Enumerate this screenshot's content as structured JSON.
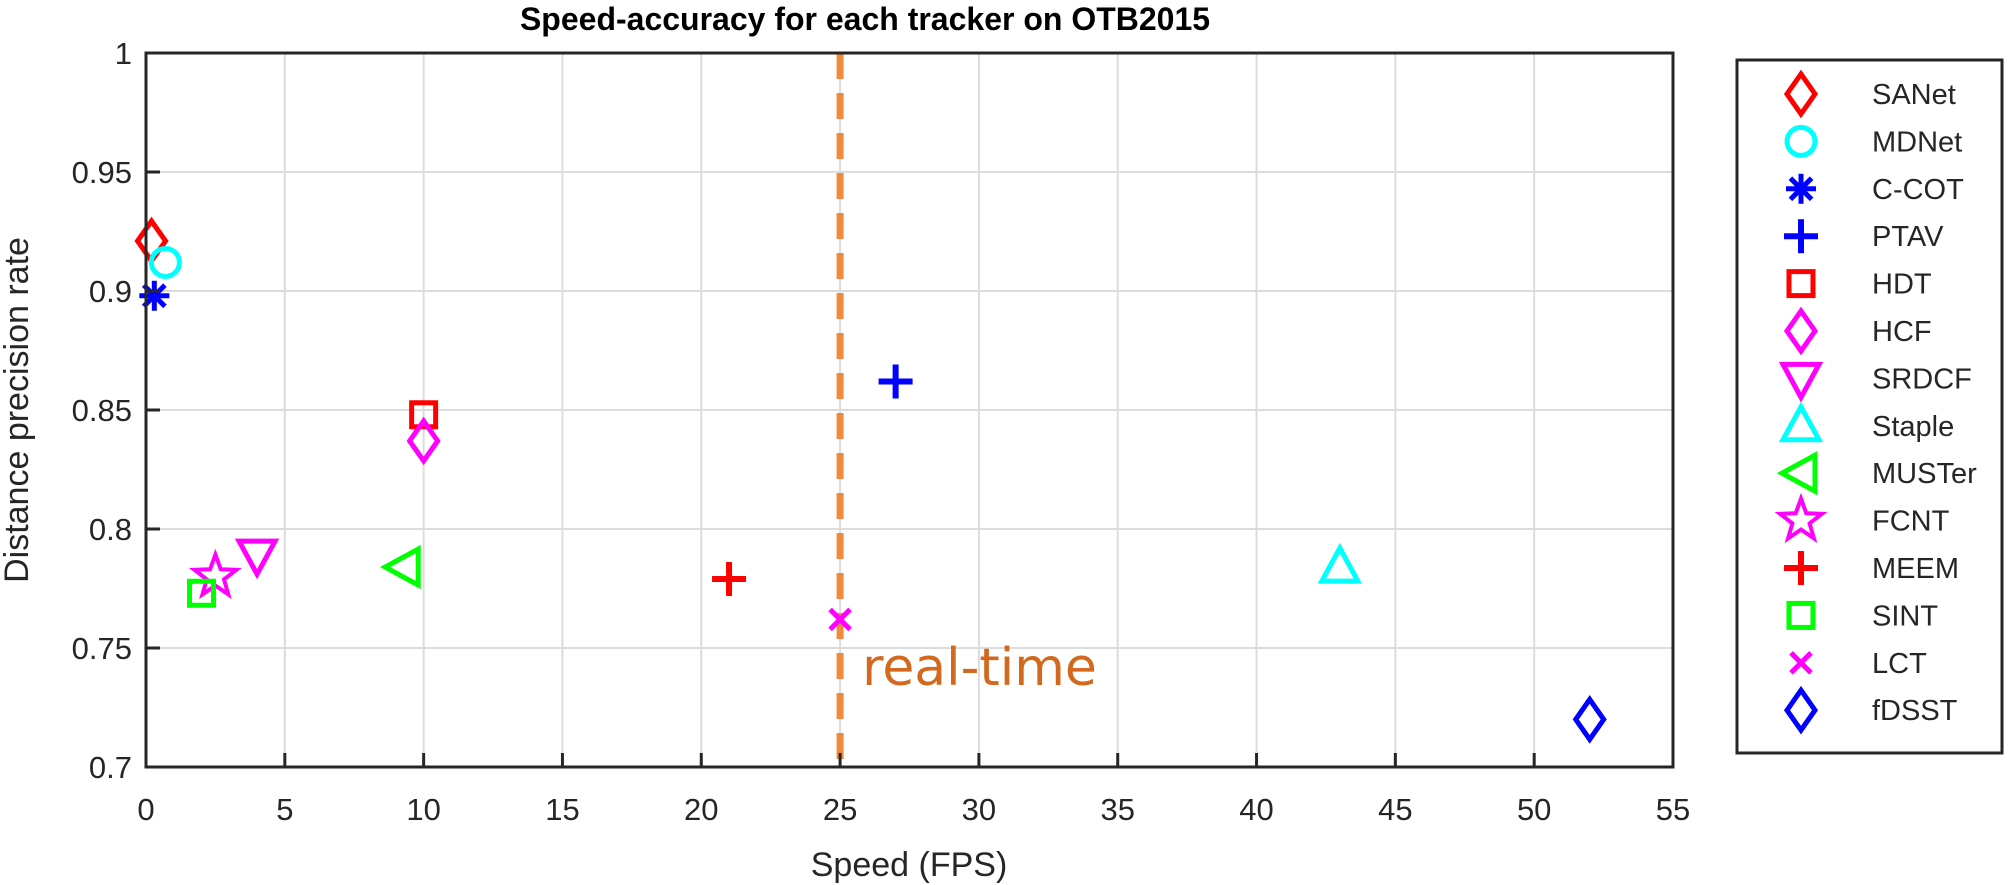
{
  "chart_data": {
    "type": "scatter",
    "title": "Speed-accuracy for each tracker on OTB2015",
    "xlabel": "Speed (FPS)",
    "ylabel": "Distance precision rate",
    "xlim": [
      0,
      55
    ],
    "ylim": [
      0.7,
      1
    ],
    "xticks": [
      0,
      5,
      10,
      15,
      20,
      25,
      30,
      35,
      40,
      45,
      50,
      55
    ],
    "yticks": [
      0.7,
      0.75,
      0.8,
      0.85,
      0.9,
      0.95,
      1
    ],
    "xtick_labels": [
      "0",
      "5",
      "10",
      "15",
      "20",
      "25",
      "30",
      "35",
      "40",
      "45",
      "50",
      "55"
    ],
    "ytick_labels": [
      "0.7",
      "0.75",
      "0.8",
      "0.85",
      "0.9",
      "0.95",
      "1"
    ],
    "grid": true,
    "legend_position": "outside-right",
    "series": [
      {
        "name": "SANet",
        "x": 0.2,
        "y": 0.921,
        "marker": "diamond",
        "color": "#ff0000"
      },
      {
        "name": "MDNet",
        "x": 0.7,
        "y": 0.912,
        "marker": "circle",
        "color": "#00ffff"
      },
      {
        "name": "C-COT",
        "x": 0.3,
        "y": 0.898,
        "marker": "asterisk",
        "color": "#0000ff"
      },
      {
        "name": "PTAV",
        "x": 27,
        "y": 0.862,
        "marker": "plus",
        "color": "#0000ff"
      },
      {
        "name": "HDT",
        "x": 10,
        "y": 0.848,
        "marker": "square",
        "color": "#ff0000"
      },
      {
        "name": "HCF",
        "x": 10,
        "y": 0.837,
        "marker": "diamond",
        "color": "#ff00ff"
      },
      {
        "name": "SRDCF",
        "x": 4,
        "y": 0.789,
        "marker": "triangle-down",
        "color": "#ff00ff"
      },
      {
        "name": "Staple",
        "x": 43,
        "y": 0.784,
        "marker": "triangle-up",
        "color": "#00ffff"
      },
      {
        "name": "MUSTer",
        "x": 9.3,
        "y": 0.784,
        "marker": "triangle-left",
        "color": "#00ff00"
      },
      {
        "name": "FCNT",
        "x": 2.5,
        "y": 0.78,
        "marker": "star",
        "color": "#ff00ff"
      },
      {
        "name": "MEEM",
        "x": 21,
        "y": 0.779,
        "marker": "plus",
        "color": "#ff0000"
      },
      {
        "name": "SINT",
        "x": 2,
        "y": 0.773,
        "marker": "square",
        "color": "#00ff00"
      },
      {
        "name": "LCT",
        "x": 25,
        "y": 0.762,
        "marker": "x",
        "color": "#ff00ff"
      },
      {
        "name": "fDSST",
        "x": 52,
        "y": 0.72,
        "marker": "diamond",
        "color": "#0000ff"
      }
    ],
    "reference_line": {
      "x": 25,
      "orientation": "vertical",
      "style": "dashed",
      "color": "#f08a3c",
      "label": "real-time",
      "label_color": "#d2691e"
    }
  }
}
